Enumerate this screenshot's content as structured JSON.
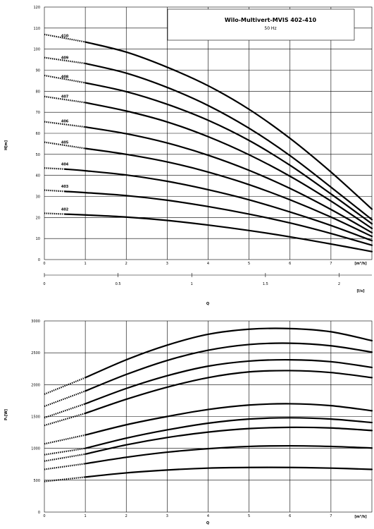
{
  "chart_data": [
    {
      "type": "line",
      "title": "Wilo-Multivert-MVIS 402-410",
      "subtitle": "50 Hz",
      "xlabel": "Q",
      "x_unit": "[m³/h]",
      "x2_unit": "[l/s]",
      "ylabel": "H[m]",
      "xlim": [
        0,
        8
      ],
      "ylim": [
        0,
        120
      ],
      "x_ticks": [
        "0",
        "1",
        "2",
        "3",
        "4",
        "5",
        "6",
        "7"
      ],
      "x2_ticks": [
        "0",
        "0.5",
        "1",
        "1.5",
        "2"
      ],
      "x2_tick_values": [
        0,
        0.5,
        1,
        1.5,
        2
      ],
      "y_ticks": [
        "0",
        "10",
        "20",
        "30",
        "40",
        "50",
        "60",
        "70",
        "80",
        "90",
        "100",
        "110",
        "120"
      ],
      "y_tick_values": [
        0,
        10,
        20,
        30,
        40,
        50,
        60,
        70,
        80,
        90,
        100,
        110,
        120
      ],
      "grid": true,
      "series": [
        {
          "name": "402",
          "dotted_x": [
            0,
            0.5
          ],
          "dotted_y": [
            22,
            21.6
          ],
          "x": [
            0.5,
            1,
            2,
            3,
            4,
            5,
            6,
            7,
            8
          ],
          "y": [
            21.6,
            21.2,
            20.2,
            18.6,
            16.4,
            13.8,
            10.8,
            7.4,
            3.8
          ]
        },
        {
          "name": "403",
          "dotted_x": [
            0,
            0.5
          ],
          "dotted_y": [
            33,
            32.4
          ],
          "x": [
            0.5,
            1,
            2,
            3,
            4,
            5,
            6,
            7,
            8
          ],
          "y": [
            32.4,
            31.8,
            30.4,
            28.2,
            25.2,
            21.6,
            17.4,
            12.4,
            6.8
          ]
        },
        {
          "name": "404",
          "dotted_x": [
            0,
            0.5
          ],
          "dotted_y": [
            43.5,
            43
          ],
          "x": [
            0.5,
            1,
            2,
            3,
            4,
            5,
            6,
            7,
            8
          ],
          "y": [
            43,
            42.2,
            40.2,
            37.2,
            33.2,
            28.4,
            22.6,
            16.2,
            9
          ]
        },
        {
          "name": "405",
          "dotted_x": [
            0,
            1
          ],
          "dotted_y": [
            55.8,
            52.8
          ],
          "x": [
            1,
            2,
            3,
            4,
            5,
            6,
            7,
            8
          ],
          "y": [
            52.8,
            50,
            46.4,
            41.6,
            35.6,
            28.4,
            20.2,
            11
          ]
        },
        {
          "name": "406",
          "dotted_x": [
            0,
            1
          ],
          "dotted_y": [
            65.5,
            63
          ],
          "x": [
            1,
            2,
            3,
            4,
            5,
            6,
            7,
            8
          ],
          "y": [
            63,
            59.8,
            55.4,
            49.6,
            42.4,
            33.8,
            23.8,
            12.8
          ]
        },
        {
          "name": "407",
          "dotted_x": [
            0,
            1
          ],
          "dotted_y": [
            77.5,
            74.6
          ],
          "x": [
            1,
            2,
            3,
            4,
            5,
            6,
            7,
            8
          ],
          "y": [
            74.6,
            70.6,
            65.4,
            58.4,
            49.8,
            39.6,
            27.8,
            14.8
          ]
        },
        {
          "name": "408",
          "dotted_x": [
            0,
            1
          ],
          "dotted_y": [
            87.5,
            84
          ],
          "x": [
            1,
            2,
            3,
            4,
            5,
            6,
            7,
            8
          ],
          "y": [
            84,
            79.8,
            73.8,
            66.2,
            56.6,
            44.8,
            31.2,
            17
          ]
        },
        {
          "name": "409",
          "dotted_x": [
            0,
            1
          ],
          "dotted_y": [
            96,
            93.2
          ],
          "x": [
            1,
            2,
            3,
            4,
            5,
            6,
            7,
            8
          ],
          "y": [
            93.2,
            88.6,
            81.8,
            73.2,
            62.4,
            49.4,
            34.4,
            19
          ]
        },
        {
          "name": "410",
          "dotted_x": [
            0,
            1
          ],
          "dotted_y": [
            107,
            103.4
          ],
          "x": [
            1,
            2,
            3,
            4,
            5,
            6,
            7,
            8
          ],
          "y": [
            103.4,
            98.6,
            91.4,
            82.6,
            71.4,
            57.6,
            41.6,
            24
          ]
        }
      ]
    },
    {
      "type": "line",
      "xlabel": "Q",
      "x_unit": "[m³/h]",
      "ylabel": "P₁[W]",
      "xlim": [
        0,
        8
      ],
      "ylim": [
        0,
        3000
      ],
      "x_ticks": [
        "0",
        "1",
        "2",
        "3",
        "4",
        "5",
        "6",
        "7"
      ],
      "y_ticks": [
        "0",
        "500",
        "1000",
        "1500",
        "2000",
        "2500",
        "3000"
      ],
      "y_tick_values": [
        0,
        500,
        1000,
        1500,
        2000,
        2500,
        3000
      ],
      "grid": true,
      "series": [
        {
          "dotted_x": [
            0,
            1
          ],
          "dotted_y": [
            480,
            550
          ],
          "x": [
            1,
            2,
            3,
            4,
            5,
            6,
            7,
            8
          ],
          "y": [
            550,
            615,
            660,
            690,
            700,
            700,
            690,
            670
          ]
        },
        {
          "dotted_x": [
            0,
            1
          ],
          "dotted_y": [
            670,
            760
          ],
          "x": [
            1,
            2,
            3,
            4,
            5,
            6,
            7,
            8
          ],
          "y": [
            760,
            860,
            940,
            995,
            1030,
            1040,
            1030,
            1005
          ]
        },
        {
          "dotted_x": [
            0,
            1
          ],
          "dotted_y": [
            800,
            910
          ],
          "x": [
            1,
            2,
            3,
            4,
            5,
            6,
            7,
            8
          ],
          "y": [
            910,
            1055,
            1170,
            1255,
            1310,
            1330,
            1320,
            1280
          ]
        },
        {
          "dotted_x": [
            0,
            1
          ],
          "dotted_y": [
            900,
            1000
          ],
          "x": [
            1,
            2,
            3,
            4,
            5,
            6,
            7,
            8
          ],
          "y": [
            1000,
            1160,
            1290,
            1395,
            1460,
            1480,
            1460,
            1405
          ]
        },
        {
          "dotted_x": [
            0,
            1
          ],
          "dotted_y": [
            1070,
            1210
          ],
          "x": [
            1,
            2,
            3,
            4,
            5,
            6,
            7,
            8
          ],
          "y": [
            1210,
            1370,
            1500,
            1610,
            1680,
            1700,
            1670,
            1590
          ]
        },
        {
          "dotted_x": [
            0,
            1
          ],
          "dotted_y": [
            1360,
            1550
          ],
          "x": [
            1,
            2,
            3,
            4,
            5,
            6,
            7,
            8
          ],
          "y": [
            1550,
            1770,
            1960,
            2110,
            2200,
            2220,
            2190,
            2110
          ]
        },
        {
          "dotted_x": [
            0,
            1
          ],
          "dotted_y": [
            1480,
            1700
          ],
          "x": [
            1,
            2,
            3,
            4,
            5,
            6,
            7,
            8
          ],
          "y": [
            1700,
            1940,
            2140,
            2290,
            2370,
            2390,
            2360,
            2270
          ]
        },
        {
          "dotted_x": [
            0,
            1
          ],
          "dotted_y": [
            1660,
            1900
          ],
          "x": [
            1,
            2,
            3,
            4,
            5,
            6,
            7,
            8
          ],
          "y": [
            1900,
            2160,
            2380,
            2540,
            2630,
            2650,
            2610,
            2510
          ]
        },
        {
          "dotted_x": [
            0,
            1
          ],
          "dotted_y": [
            1850,
            2110
          ],
          "x": [
            1,
            2,
            3,
            4,
            5,
            6,
            7,
            8
          ],
          "y": [
            2110,
            2390,
            2620,
            2790,
            2870,
            2880,
            2830,
            2690
          ]
        }
      ]
    }
  ]
}
